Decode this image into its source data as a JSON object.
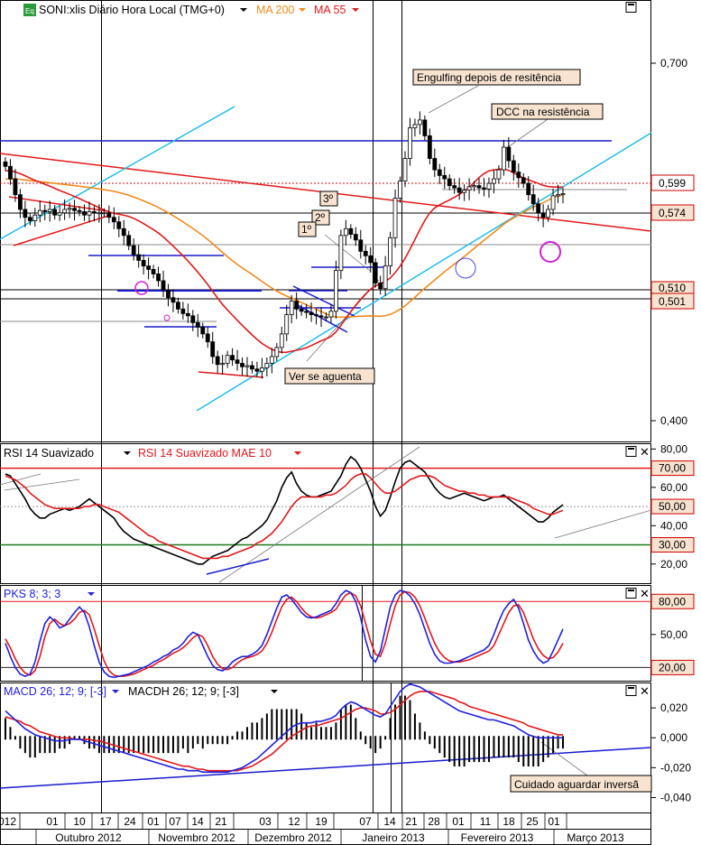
{
  "chart_data": [
    {
      "type": "candlestick",
      "panel": "price",
      "title": "SONI:xlis Diário Hora Local (TMG+0)",
      "title_icon": "Eq",
      "indicators": [
        {
          "name": "MA 200",
          "color": "#f08a1c"
        },
        {
          "name": "MA 55",
          "color": "#e0191c"
        }
      ],
      "y_ticks": [
        "0,700",
        "0,400"
      ],
      "price_badges": [
        {
          "value": 0.599,
          "label": "0,599",
          "color": "#cc0000",
          "fill": "#ffffff"
        },
        {
          "value": 0.574,
          "label": "0,574",
          "color": "#cc0000",
          "fill": "#f7e3cf"
        },
        {
          "value": 0.51,
          "label": "0,510",
          "color": "#cc0000",
          "fill": "#f7e3cf"
        },
        {
          "value": 0.501,
          "label": "0,501",
          "color": "#cc0000",
          "fill": "#f7e3cf"
        }
      ],
      "annotations": [
        {
          "text": "Engulfing depois de resitência"
        },
        {
          "text": "DCC na resistência"
        },
        {
          "text": "3º"
        },
        {
          "text": "2º"
        },
        {
          "text": "1º"
        },
        {
          "text": "Ver se aguenta"
        }
      ],
      "ylim": [
        0.38,
        0.77
      ],
      "series": [
        {
          "name": "close",
          "values": [
            0.623,
            0.612,
            0.598,
            0.585,
            0.578,
            0.575,
            0.58,
            0.584,
            0.583,
            0.585,
            0.58,
            0.582,
            0.585,
            0.586,
            0.584,
            0.583,
            0.58,
            0.583,
            0.582,
            0.582,
            0.582,
            0.578,
            0.574,
            0.568,
            0.562,
            0.553,
            0.545,
            0.54,
            0.535,
            0.532,
            0.528,
            0.522,
            0.514,
            0.507,
            0.503,
            0.497,
            0.493,
            0.491,
            0.485,
            0.481,
            0.475,
            0.468,
            0.455,
            0.448,
            0.449,
            0.456,
            0.452,
            0.449,
            0.446,
            0.447,
            0.444,
            0.442,
            0.445,
            0.449,
            0.455,
            0.463,
            0.475,
            0.492,
            0.504,
            0.497,
            0.495,
            0.494,
            0.492,
            0.491,
            0.49,
            0.49,
            0.495,
            0.531,
            0.562,
            0.568,
            0.563,
            0.558,
            0.548,
            0.544,
            0.538,
            0.52,
            0.515,
            0.535,
            0.56,
            0.595,
            0.61,
            0.63,
            0.657,
            0.66,
            0.664,
            0.65,
            0.63,
            0.62,
            0.615,
            0.612,
            0.606,
            0.604,
            0.6,
            0.602,
            0.605,
            0.606,
            0.604,
            0.603,
            0.608,
            0.612,
            0.62,
            0.64,
            0.628,
            0.618,
            0.613,
            0.608,
            0.598,
            0.59,
            0.582,
            0.578,
            0.585,
            0.597,
            0.598,
            0.599
          ]
        }
      ]
    },
    {
      "type": "line",
      "panel": "oscillator",
      "title": "RSI 14 Suavizado",
      "ylim": [
        10,
        83
      ],
      "y_ticks": [
        "80,00",
        "60,00",
        "40,00",
        "20,00"
      ],
      "badges": [
        {
          "label": "70,00",
          "color": "#cc0000"
        },
        {
          "label": "50,00",
          "color": "#cc0000"
        },
        {
          "label": "30,00",
          "color": "#cc0000"
        }
      ],
      "levels": [
        {
          "value": 70,
          "color": "#e0191c"
        },
        {
          "value": 30,
          "color": "#1f7a1f"
        }
      ],
      "series": [
        {
          "name": "RSI 14 Suavizado",
          "color": "#000000",
          "values": [
            67,
            66,
            62,
            58,
            54,
            49,
            46,
            44,
            44,
            46,
            47,
            48,
            49,
            48,
            49,
            50,
            52,
            54,
            52,
            50,
            48,
            46,
            44,
            40,
            37,
            35,
            33,
            32,
            31,
            30,
            29,
            28,
            27,
            26,
            25,
            24,
            23,
            22,
            21,
            20,
            20,
            22,
            24,
            25,
            26,
            27,
            29,
            31,
            33,
            34,
            36,
            38,
            40,
            43,
            48,
            53,
            60,
            65,
            68,
            62,
            58,
            56,
            55,
            55,
            56,
            57,
            58,
            62,
            66,
            72,
            76,
            74,
            70,
            64,
            58,
            50,
            45,
            48,
            55,
            63,
            70,
            73,
            74,
            72,
            70,
            68,
            64,
            60,
            57,
            55,
            54,
            55,
            56,
            57,
            56,
            55,
            54,
            53,
            54,
            55,
            55,
            56,
            54,
            52,
            50,
            48,
            46,
            44,
            42,
            42,
            44,
            47,
            49,
            51
          ]
        },
        {
          "name": "RSI 14 Suavizado MAE 10",
          "color": "#e0191c",
          "values": [
            66,
            65,
            64,
            62,
            60,
            57,
            55,
            53,
            51,
            50,
            49,
            49,
            49,
            49,
            49,
            49,
            50,
            50,
            51,
            51,
            50,
            49,
            48,
            47,
            45,
            43,
            41,
            39,
            37,
            35,
            34,
            32,
            31,
            30,
            29,
            28,
            27,
            26,
            25,
            24,
            23,
            23,
            23,
            23,
            24,
            24,
            25,
            26,
            27,
            28,
            29,
            31,
            32,
            34,
            36,
            39,
            42,
            46,
            50,
            53,
            55,
            55,
            55,
            55,
            55,
            56,
            56,
            57,
            59,
            61,
            64,
            66,
            67,
            67,
            65,
            62,
            59,
            57,
            57,
            58,
            60,
            62,
            64,
            65,
            66,
            66,
            66,
            65,
            63,
            61,
            60,
            59,
            58,
            58,
            57,
            57,
            56,
            56,
            55,
            55,
            55,
            55,
            55,
            54,
            53,
            52,
            51,
            49,
            48,
            47,
            46,
            46,
            47,
            48
          ]
        }
      ]
    },
    {
      "type": "line",
      "panel": "oscillator",
      "title": "PKS 8; 3; 3",
      "ylim": [
        8,
        95
      ],
      "y_ticks": [
        "50,00"
      ],
      "badges": [
        {
          "label": "80,00",
          "color": "#cc0000"
        },
        {
          "label": "20,00",
          "color": "#cc0000"
        }
      ],
      "levels": [
        {
          "value": 80,
          "color": "#e0191c"
        },
        {
          "value": 20,
          "color": "#222222"
        }
      ],
      "series": [
        {
          "name": "%K",
          "color": "#2020dd",
          "values": [
            42,
            30,
            20,
            14,
            12,
            14,
            25,
            44,
            60,
            66,
            62,
            56,
            58,
            64,
            70,
            75,
            70,
            57,
            40,
            25,
            16,
            12,
            11,
            12,
            13,
            14,
            16,
            18,
            20,
            22,
            25,
            27,
            30,
            32,
            36,
            38,
            42,
            48,
            52,
            50,
            40,
            30,
            22,
            18,
            17,
            20,
            25,
            28,
            30,
            30,
            32,
            35,
            40,
            50,
            62,
            74,
            84,
            86,
            82,
            76,
            70,
            66,
            65,
            66,
            68,
            70,
            72,
            78,
            86,
            90,
            88,
            80,
            65,
            45,
            30,
            25,
            35,
            55,
            75,
            86,
            90,
            89,
            85,
            78,
            68,
            55,
            42,
            32,
            26,
            24,
            24,
            25,
            26,
            28,
            30,
            32,
            34,
            36,
            40,
            50,
            62,
            72,
            78,
            82,
            74,
            60,
            45,
            35,
            28,
            24,
            26,
            35,
            45,
            55
          ]
        },
        {
          "name": "%D",
          "color": "#e0191c",
          "values": [
            46,
            38,
            28,
            20,
            15,
            13,
            17,
            30,
            48,
            60,
            64,
            60,
            58,
            60,
            64,
            70,
            72,
            68,
            55,
            40,
            26,
            17,
            13,
            12,
            12,
            13,
            14,
            16,
            18,
            20,
            22,
            25,
            27,
            30,
            33,
            35,
            38,
            42,
            47,
            50,
            48,
            40,
            30,
            23,
            19,
            18,
            20,
            24,
            27,
            29,
            30,
            32,
            35,
            42,
            52,
            64,
            75,
            82,
            84,
            80,
            74,
            69,
            66,
            65,
            66,
            68,
            70,
            73,
            80,
            86,
            88,
            85,
            76,
            60,
            44,
            32,
            30,
            42,
            60,
            76,
            86,
            89,
            88,
            84,
            76,
            65,
            53,
            42,
            34,
            29,
            26,
            25,
            25,
            26,
            27,
            29,
            31,
            33,
            35,
            40,
            50,
            60,
            70,
            76,
            77,
            70,
            58,
            46,
            37,
            31,
            28,
            29,
            34,
            42
          ]
        }
      ]
    },
    {
      "type": "line",
      "panel": "oscillator",
      "title": "MACD 26; 12; 9; [-3]",
      "subtitle": "MACDH 26; 12; 9; [-3]",
      "ylim": [
        -0.05,
        0.037
      ],
      "y_ticks": [
        "0,020",
        "0,000",
        "-0,020",
        "-0,040"
      ],
      "annotation": "Cuidado aguardar inversã",
      "series": [
        {
          "name": "MACD 26; 12; 9; [-3]",
          "color": "#2020dd",
          "values": [
            0.018,
            0.015,
            0.012,
            0.009,
            0.006,
            0.004,
            0.002,
            0.001,
            0.0,
            -0.001,
            -0.002,
            -0.002,
            -0.002,
            -0.001,
            -0.001,
            -0.001,
            -0.002,
            -0.003,
            -0.004,
            -0.005,
            -0.006,
            -0.007,
            -0.008,
            -0.009,
            -0.01,
            -0.011,
            -0.012,
            -0.013,
            -0.014,
            -0.015,
            -0.016,
            -0.017,
            -0.018,
            -0.019,
            -0.02,
            -0.021,
            -0.021,
            -0.022,
            -0.022,
            -0.022,
            -0.023,
            -0.023,
            -0.023,
            -0.023,
            -0.023,
            -0.023,
            -0.022,
            -0.021,
            -0.02,
            -0.018,
            -0.016,
            -0.014,
            -0.011,
            -0.008,
            -0.005,
            -0.002,
            0.001,
            0.004,
            0.007,
            0.009,
            0.01,
            0.01,
            0.01,
            0.011,
            0.011,
            0.012,
            0.013,
            0.015,
            0.019,
            0.022,
            0.024,
            0.023,
            0.021,
            0.019,
            0.017,
            0.015,
            0.014,
            0.016,
            0.021,
            0.026,
            0.031,
            0.034,
            0.036,
            0.035,
            0.034,
            0.032,
            0.03,
            0.028,
            0.026,
            0.024,
            0.022,
            0.02,
            0.018,
            0.017,
            0.016,
            0.015,
            0.014,
            0.013,
            0.012,
            0.012,
            0.011,
            0.01,
            0.009,
            0.008,
            0.006,
            0.004,
            0.002,
            0.001,
            0.0,
            0.0,
            0.0,
            0.0,
            0.0,
            0.0
          ]
        },
        {
          "name": "sinal",
          "color": "#e0191c",
          "values": [
            0.014,
            0.013,
            0.012,
            0.011,
            0.009,
            0.008,
            0.006,
            0.004,
            0.003,
            0.002,
            0.001,
            0.0,
            0.0,
            0.0,
            -0.001,
            -0.001,
            -0.001,
            -0.001,
            -0.002,
            -0.002,
            -0.003,
            -0.004,
            -0.005,
            -0.006,
            -0.007,
            -0.008,
            -0.009,
            -0.01,
            -0.011,
            -0.012,
            -0.013,
            -0.014,
            -0.015,
            -0.016,
            -0.017,
            -0.018,
            -0.019,
            -0.019,
            -0.02,
            -0.021,
            -0.021,
            -0.022,
            -0.022,
            -0.022,
            -0.022,
            -0.022,
            -0.022,
            -0.022,
            -0.021,
            -0.02,
            -0.019,
            -0.017,
            -0.015,
            -0.013,
            -0.011,
            -0.008,
            -0.005,
            -0.002,
            0.001,
            0.003,
            0.005,
            0.007,
            0.008,
            0.008,
            0.009,
            0.01,
            0.011,
            0.012,
            0.013,
            0.015,
            0.017,
            0.019,
            0.02,
            0.02,
            0.019,
            0.018,
            0.016,
            0.016,
            0.017,
            0.019,
            0.022,
            0.025,
            0.028,
            0.03,
            0.031,
            0.031,
            0.031,
            0.03,
            0.029,
            0.028,
            0.027,
            0.026,
            0.024,
            0.023,
            0.021,
            0.02,
            0.019,
            0.018,
            0.017,
            0.016,
            0.015,
            0.014,
            0.013,
            0.012,
            0.011,
            0.01,
            0.008,
            0.007,
            0.006,
            0.005,
            0.004,
            0.003,
            0.002,
            0.002
          ]
        }
      ]
    }
  ],
  "x_axis": {
    "day_ticks": [
      "012",
      "01",
      "10",
      "17",
      "24",
      "01",
      "07",
      "14",
      "21",
      "03",
      "12",
      "19",
      "07",
      "14",
      "21",
      "28",
      "01",
      "11",
      "18",
      "25",
      "01"
    ],
    "months": [
      "Outubro 2012",
      "Novembro 2012",
      "Dezembro 2012",
      "Janeiro 2013",
      "Fevereiro 2013",
      "Março 2013"
    ]
  },
  "window_icons": {
    "maximize": "maximize-icon",
    "close": "close-icon",
    "dropdown": "chevron-down-icon"
  }
}
